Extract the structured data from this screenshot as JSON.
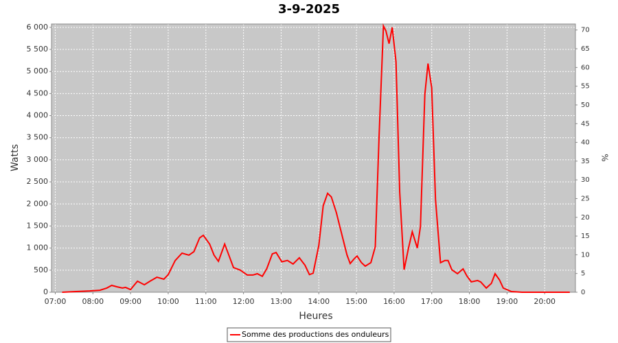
{
  "chart_data": {
    "type": "line",
    "title": "3-9-2025",
    "y_label": "Watts",
    "y2_label": "%",
    "x_label": "Heures",
    "x": [
      "07:11",
      "07:33",
      "07:55",
      "08:11",
      "08:22",
      "08:30",
      "08:38",
      "08:47",
      "08:52",
      "09:00",
      "09:11",
      "09:22",
      "09:31",
      "09:42",
      "09:53",
      "10:00",
      "10:11",
      "10:22",
      "10:33",
      "10:41",
      "10:50",
      "10:56",
      "11:06",
      "11:13",
      "11:20",
      "11:30",
      "11:38",
      "11:44",
      "11:55",
      "12:06",
      "12:15",
      "12:22",
      "12:30",
      "12:37",
      "12:46",
      "12:52",
      "13:01",
      "13:10",
      "13:19",
      "13:29",
      "13:38",
      "13:45",
      "13:51",
      "14:00",
      "14:07",
      "14:14",
      "14:20",
      "14:28",
      "14:37",
      "14:45",
      "14:50",
      "14:56",
      "15:01",
      "15:08",
      "15:14",
      "15:23",
      "15:30",
      "15:36",
      "15:43",
      "15:47",
      "15:52",
      "15:57",
      "16:03",
      "16:09",
      "16:16",
      "16:23",
      "16:29",
      "16:37",
      "16:42",
      "16:49",
      "16:54",
      "17:00",
      "17:06",
      "17:14",
      "17:21",
      "17:26",
      "17:32",
      "17:41",
      "17:50",
      "17:56",
      "18:03",
      "18:13",
      "18:18",
      "18:27",
      "18:35",
      "18:41",
      "18:48",
      "18:54",
      "19:07",
      "19:24",
      "20:40"
    ],
    "series": [
      {
        "name": "Somme des productions des onduleurs",
        "color": "#ff0000",
        "values": [
          0,
          15,
          30,
          45,
          95,
          155,
          125,
          95,
          110,
          60,
          250,
          170,
          250,
          340,
          295,
          400,
          715,
          885,
          840,
          920,
          1230,
          1290,
          1090,
          840,
          700,
          1090,
          790,
          560,
          500,
          390,
          390,
          420,
          360,
          530,
          870,
          900,
          690,
          720,
          640,
          780,
          610,
          400,
          430,
          1060,
          1960,
          2240,
          2160,
          1800,
          1290,
          840,
          650,
          750,
          820,
          670,
          590,
          670,
          1030,
          3510,
          6030,
          5920,
          5630,
          6000,
          5220,
          2270,
          510,
          1000,
          1370,
          1000,
          1490,
          4480,
          5180,
          4630,
          2110,
          670,
          720,
          720,
          510,
          420,
          530,
          370,
          235,
          265,
          235,
          95,
          200,
          420,
          280,
          95,
          15,
          0,
          0
        ]
      }
    ],
    "xlim": [
      "06:54",
      "20:49"
    ],
    "xticks": [
      "07:00",
      "08:00",
      "09:00",
      "10:00",
      "11:00",
      "12:00",
      "13:00",
      "14:00",
      "15:00",
      "16:00",
      "17:00",
      "18:00",
      "19:00",
      "20:00"
    ],
    "ylim": [
      0,
      6075
    ],
    "yticks": [
      0,
      500,
      {
        "value": 1000,
        "label": "1 000"
      },
      {
        "value": 1500,
        "label": "1 500"
      },
      {
        "value": 2000,
        "label": "2 000"
      },
      {
        "value": 2500,
        "label": "2 500"
      },
      {
        "value": 3000,
        "label": "3 000"
      },
      {
        "value": 3500,
        "label": "3 500"
      },
      {
        "value": 4000,
        "label": "4 000"
      },
      {
        "value": 4500,
        "label": "4 500"
      },
      {
        "value": 5000,
        "label": "5 000"
      },
      {
        "value": 5500,
        "label": "5 500"
      },
      {
        "value": 6000,
        "label": "6 000"
      }
    ],
    "y2lim": [
      0,
      71.6
    ],
    "y2ticks": [
      0,
      5,
      10,
      15,
      20,
      25,
      30,
      35,
      40,
      45,
      50,
      55,
      60,
      65,
      70
    ],
    "grid": true,
    "legend": "bottom"
  }
}
